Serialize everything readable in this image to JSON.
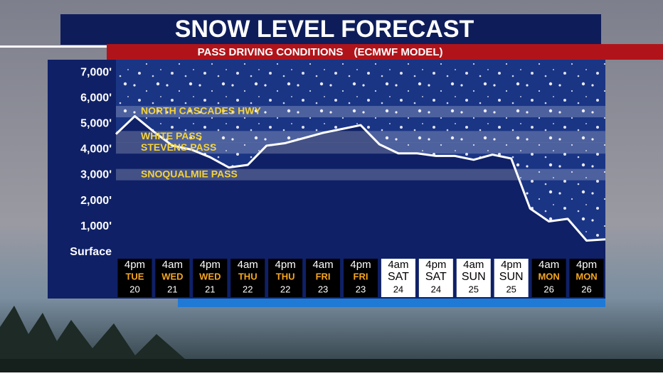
{
  "chart_data": {
    "type": "area",
    "title": "SNOW LEVEL FORECAST",
    "subtitle": "PASS DRIVING CONDITIONS",
    "model": "(ECMWF MODEL)",
    "categories": [
      [
        "4pm",
        "TUE",
        "20"
      ],
      [
        "4am",
        "WED",
        "21"
      ],
      [
        "4pm",
        "WED",
        "21"
      ],
      [
        "4am",
        "THU",
        "22"
      ],
      [
        "4pm",
        "THU",
        "22"
      ],
      [
        "4am",
        "FRI",
        "23"
      ],
      [
        "4pm",
        "FRI",
        "23"
      ],
      [
        "4am",
        "SAT",
        "24"
      ],
      [
        "4pm",
        "SAT",
        "24"
      ],
      [
        "4am",
        "SUN",
        "25"
      ],
      [
        "4pm",
        "SUN",
        "25"
      ],
      [
        "4am",
        "MON",
        "26"
      ],
      [
        "4pm",
        "MON",
        "26"
      ]
    ],
    "box_colors": [
      "#000000",
      "#000000",
      "#000000",
      "#000000",
      "#000000",
      "#000000",
      "#000000",
      "#ffffff",
      "#ffffff",
      "#ffffff",
      "#ffffff",
      "#000000",
      "#000000"
    ],
    "series": [
      {
        "name": "Snow level",
        "color": "#ffffff",
        "x": [
          -0.5,
          0,
          0.5,
          1,
          1.5,
          2,
          2.5,
          3,
          3.5,
          4,
          4.5,
          5,
          5.5,
          6,
          6.5,
          7,
          7.5,
          8,
          8.5,
          9,
          9.5,
          10,
          10.5,
          11,
          11.5,
          12,
          12.5
        ],
        "values": [
          4600,
          5300,
          4700,
          4150,
          4000,
          3700,
          3300,
          3400,
          4150,
          4250,
          4450,
          4650,
          4800,
          4950,
          4200,
          3850,
          3850,
          3750,
          3750,
          3600,
          3800,
          3650,
          1700,
          1200,
          1300,
          450,
          500
        ]
      }
    ],
    "passes": [
      {
        "name": "NORTH CASCADES HWY",
        "elevation": 5477
      },
      {
        "name": "WHITE PASS",
        "elevation": 4500
      },
      {
        "name": "STEVENS PASS",
        "elevation": 4061
      },
      {
        "name": "SNOQUALMIE PASS",
        "elevation": 3022
      }
    ],
    "xlim": [
      -0.5,
      12.5
    ],
    "ylim": [
      -200,
      7500
    ],
    "yticks": [
      {
        "value": 7000,
        "label": "7,000'"
      },
      {
        "value": 6000,
        "label": "6,000'"
      },
      {
        "value": 5000,
        "label": "5,000'"
      },
      {
        "value": 4000,
        "label": "4,000'"
      },
      {
        "value": 3000,
        "label": "3,000'"
      },
      {
        "value": 2000,
        "label": "2,000'"
      },
      {
        "value": 1000,
        "label": "1,000'"
      },
      {
        "value": 0,
        "label": "Surface"
      }
    ]
  }
}
